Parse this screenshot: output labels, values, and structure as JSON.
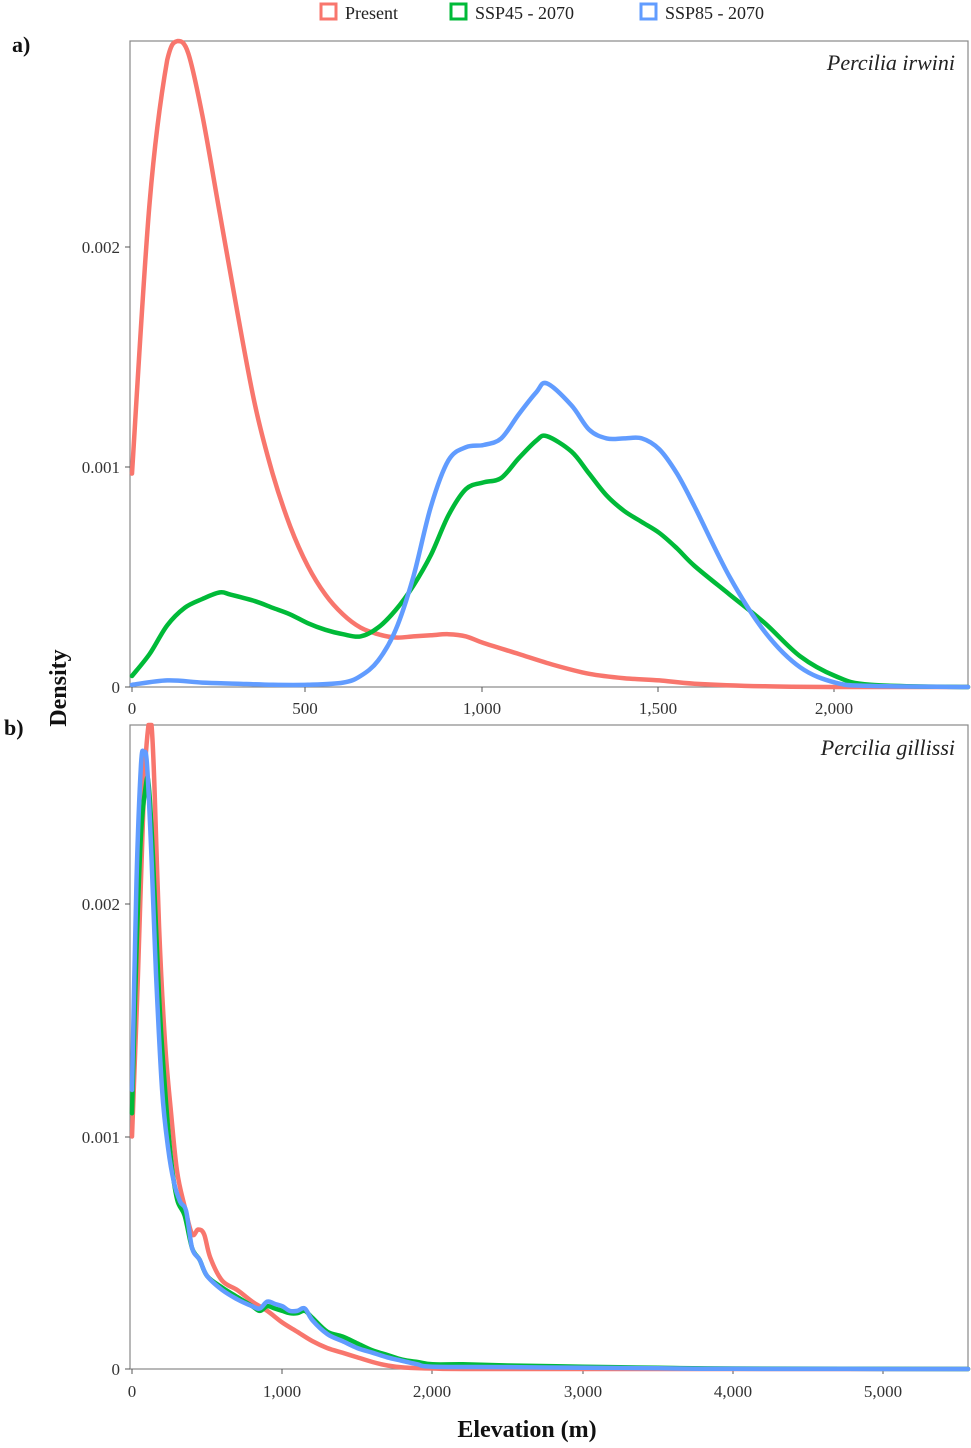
{
  "legend": {
    "items": [
      {
        "label": "Present",
        "color": "#F8766D"
      },
      {
        "label": "SSP45 - 2070",
        "color": "#00BA38"
      },
      {
        "label": "SSP85 - 2070",
        "color": "#619CFF"
      }
    ]
  },
  "axes": {
    "ylabel": "Density",
    "xlabel": "Elevation (m)"
  },
  "panels": [
    {
      "tag": "a)",
      "species": "Percilia irwini",
      "xticks": [
        "0",
        "500",
        "1,000",
        "1,500",
        "2,000"
      ],
      "yticks": [
        "0",
        "0.001",
        "0.002"
      ]
    },
    {
      "tag": "b)",
      "species": "Percilia gillissi",
      "xticks": [
        "0",
        "1,000",
        "2,000",
        "3,000",
        "4,000",
        "5,000"
      ],
      "yticks": [
        "0",
        "0.001",
        "0.002"
      ]
    }
  ],
  "chart_data": [
    {
      "type": "line",
      "title": "Percilia irwini",
      "panel": "a)",
      "xlabel": "Elevation (m)",
      "ylabel": "Density",
      "xlim": [
        0,
        2380
      ],
      "ylim": [
        0,
        0.00294
      ],
      "xticks": [
        0,
        500,
        1000,
        1500,
        2000
      ],
      "yticks": [
        0,
        0.001,
        0.002
      ],
      "legend_position": "top",
      "series": [
        {
          "name": "Present",
          "color": "#F8766D",
          "x": [
            0,
            50,
            100,
            130,
            160,
            200,
            250,
            300,
            350,
            400,
            450,
            500,
            550,
            600,
            650,
            700,
            750,
            800,
            850,
            900,
            950,
            1000,
            1100,
            1200,
            1300,
            1400,
            1500,
            1600,
            1800,
            2000,
            2380
          ],
          "y": [
            0.00097,
            0.0022,
            0.00285,
            0.00294,
            0.00288,
            0.0026,
            0.00215,
            0.0017,
            0.00128,
            0.00097,
            0.00073,
            0.00055,
            0.00042,
            0.00033,
            0.00027,
            0.00024,
            0.000225,
            0.00023,
            0.000235,
            0.00024,
            0.00023,
            0.0002,
            0.00015,
            0.0001,
            6e-05,
            4e-05,
            3e-05,
            1.5e-05,
            3e-06,
            0.0,
            0.0
          ]
        },
        {
          "name": "SSP45 - 2070",
          "color": "#00BA38",
          "x": [
            0,
            50,
            100,
            150,
            200,
            250,
            280,
            350,
            400,
            450,
            500,
            550,
            600,
            650,
            700,
            750,
            800,
            850,
            900,
            950,
            1000,
            1050,
            1100,
            1150,
            1180,
            1250,
            1300,
            1350,
            1400,
            1450,
            1500,
            1550,
            1600,
            1700,
            1800,
            1900,
            2000,
            2100,
            2380
          ],
          "y": [
            5e-05,
            0.00015,
            0.00028,
            0.00036,
            0.0004,
            0.00043,
            0.00042,
            0.00039,
            0.00036,
            0.00033,
            0.00029,
            0.00026,
            0.00024,
            0.00023,
            0.00027,
            0.00035,
            0.00046,
            0.0006,
            0.00078,
            0.0009,
            0.00093,
            0.00095,
            0.00104,
            0.00112,
            0.00114,
            0.00107,
            0.00097,
            0.00087,
            0.0008,
            0.00075,
            0.0007,
            0.00063,
            0.00055,
            0.00042,
            0.00029,
            0.00014,
            5e-05,
            1e-05,
            0.0
          ]
        },
        {
          "name": "SSP85 - 2070",
          "color": "#619CFF",
          "x": [
            0,
            100,
            200,
            300,
            400,
            500,
            600,
            650,
            700,
            750,
            800,
            850,
            900,
            950,
            1000,
            1050,
            1100,
            1150,
            1180,
            1250,
            1300,
            1350,
            1400,
            1450,
            1500,
            1550,
            1600,
            1700,
            1800,
            1900,
            2000,
            2100,
            2380
          ],
          "y": [
            1e-05,
            3e-05,
            2e-05,
            1.5e-05,
            1e-05,
            1e-05,
            2e-05,
            5e-05,
            0.00012,
            0.00026,
            0.0005,
            0.00082,
            0.00103,
            0.00109,
            0.0011,
            0.00113,
            0.00124,
            0.00134,
            0.00138,
            0.00128,
            0.00117,
            0.00113,
            0.00113,
            0.00113,
            0.00108,
            0.00097,
            0.00082,
            0.0005,
            0.00025,
            9e-05,
            2e-05,
            5e-06,
            0.0
          ]
        }
      ]
    },
    {
      "type": "line",
      "title": "Percilia gillissi",
      "panel": "b)",
      "xlabel": "Elevation (m)",
      "ylabel": "Density",
      "xlim": [
        0,
        5580
      ],
      "ylim": [
        0,
        0.00277
      ],
      "xticks": [
        0,
        1000,
        2000,
        3000,
        4000,
        5000
      ],
      "yticks": [
        0,
        0.001,
        0.002
      ],
      "legend_position": "top",
      "series": [
        {
          "name": "Present",
          "color": "#F8766D",
          "x": [
            0,
            40,
            80,
            110,
            130,
            150,
            180,
            220,
            260,
            300,
            350,
            400,
            440,
            480,
            520,
            600,
            700,
            800,
            900,
            1000,
            1100,
            1200,
            1300,
            1400,
            1500,
            1600,
            1700,
            1800,
            2000,
            2500,
            5580
          ],
          "y": [
            0.001,
            0.0017,
            0.0025,
            0.0028,
            0.00277,
            0.0025,
            0.0019,
            0.0014,
            0.0011,
            0.00085,
            0.0007,
            0.00058,
            0.0006,
            0.00058,
            0.00048,
            0.00038,
            0.00034,
            0.00029,
            0.00025,
            0.0002,
            0.00016,
            0.00012,
            9e-05,
            7e-05,
            5e-05,
            3e-05,
            1.5e-05,
            7e-06,
            2e-06,
            0.0,
            0.0
          ]
        },
        {
          "name": "SSP45 - 2070",
          "color": "#00BA38",
          "x": [
            0,
            30,
            60,
            90,
            110,
            140,
            180,
            220,
            260,
            300,
            350,
            400,
            450,
            500,
            600,
            700,
            800,
            850,
            900,
            950,
            1000,
            1050,
            1100,
            1150,
            1200,
            1300,
            1400,
            1500,
            1600,
            1700,
            1800,
            1900,
            2000,
            2200,
            2500,
            3000,
            3500,
            4000,
            5580
          ],
          "y": [
            0.0011,
            0.0018,
            0.0023,
            0.0025,
            0.00252,
            0.0022,
            0.0016,
            0.0012,
            0.0009,
            0.00073,
            0.00066,
            0.00052,
            0.00047,
            0.0004,
            0.00035,
            0.00031,
            0.00027,
            0.00025,
            0.00027,
            0.00026,
            0.00025,
            0.00024,
            0.00024,
            0.00025,
            0.00022,
            0.00016,
            0.00014,
            0.00011,
            8e-05,
            6e-05,
            4e-05,
            3e-05,
            2e-05,
            2e-05,
            1.5e-05,
            1e-05,
            5e-06,
            2e-06,
            0.0
          ]
        },
        {
          "name": "SSP85 - 2070",
          "color": "#619CFF",
          "x": [
            0,
            30,
            60,
            80,
            100,
            130,
            160,
            200,
            240,
            280,
            320,
            360,
            400,
            450,
            500,
            600,
            700,
            800,
            850,
            900,
            950,
            1000,
            1050,
            1100,
            1150,
            1200,
            1300,
            1400,
            1500,
            1600,
            1700,
            1800,
            1900,
            2000,
            2500,
            3000,
            3500,
            4000,
            5580
          ],
          "y": [
            0.0012,
            0.0021,
            0.0026,
            0.00265,
            0.0026,
            0.0022,
            0.0017,
            0.0012,
            0.00095,
            0.0008,
            0.00072,
            0.00068,
            0.00052,
            0.00047,
            0.0004,
            0.00034,
            0.0003,
            0.00027,
            0.00026,
            0.00029,
            0.00028,
            0.00027,
            0.00025,
            0.00025,
            0.00026,
            0.00021,
            0.00015,
            0.00012,
            9e-05,
            7e-05,
            5e-05,
            3.5e-05,
            2e-05,
            1e-05,
            8e-06,
            5e-06,
            3e-06,
            1e-06,
            0.0
          ]
        }
      ]
    }
  ]
}
